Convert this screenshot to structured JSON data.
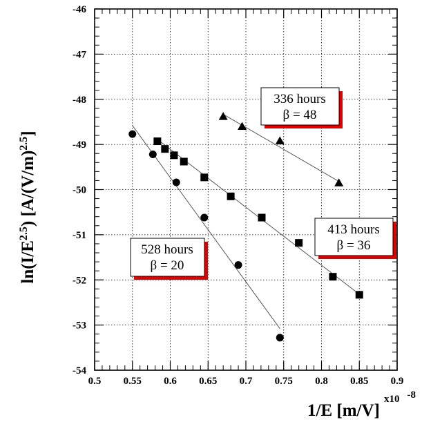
{
  "chart_data": {
    "type": "scatter",
    "xlabel": "1/E [m/V]",
    "ylabel": "ln(I/E^2.5) [A/(V/m)^2.5]",
    "ylabel_parts": {
      "base": "ln(I/E",
      "exp1": "2.5",
      "mid": ") [A/(V/m)",
      "exp2": "2.5",
      "end": "]"
    },
    "x_exponent": "x10",
    "x_exponent_power": "-8",
    "xlim": [
      0.5,
      0.9
    ],
    "ylim": [
      -54,
      -46
    ],
    "xticks": [
      "0.5",
      "0.55",
      "0.6",
      "0.65",
      "0.7",
      "0.75",
      "0.8",
      "0.85",
      "0.9"
    ],
    "yticks": [
      "-46",
      "-47",
      "-48",
      "-49",
      "-50",
      "-51",
      "-52",
      "-53",
      "-54"
    ],
    "grid": true,
    "series": [
      {
        "name": "336 hours",
        "beta_label": "β = 48",
        "marker": "triangle",
        "points": [
          [
            0.67,
            -48.38
          ],
          [
            0.695,
            -48.6
          ],
          [
            0.745,
            -48.92
          ],
          [
            0.823,
            -49.85
          ]
        ],
        "fit": [
          [
            0.672,
            -48.35
          ],
          [
            0.823,
            -49.82
          ]
        ]
      },
      {
        "name": "413 hours",
        "beta_label": "β = 36",
        "marker": "square",
        "points": [
          [
            0.583,
            -48.93
          ],
          [
            0.593,
            -49.1
          ],
          [
            0.605,
            -49.24
          ],
          [
            0.618,
            -49.38
          ],
          [
            0.645,
            -49.73
          ],
          [
            0.68,
            -50.15
          ],
          [
            0.721,
            -50.62
          ],
          [
            0.77,
            -51.18
          ],
          [
            0.815,
            -51.93
          ],
          [
            0.85,
            -52.33
          ]
        ],
        "fit": [
          [
            0.58,
            -48.85
          ],
          [
            0.851,
            -52.33
          ]
        ]
      },
      {
        "name": "528 hours",
        "beta_label": "β = 20",
        "marker": "circle",
        "points": [
          [
            0.55,
            -48.77
          ],
          [
            0.577,
            -49.22
          ],
          [
            0.608,
            -49.84
          ],
          [
            0.645,
            -50.62
          ],
          [
            0.69,
            -51.67
          ],
          [
            0.745,
            -53.28
          ]
        ],
        "fit": [
          [
            0.55,
            -48.58
          ],
          [
            0.745,
            -53.08
          ]
        ]
      }
    ]
  }
}
